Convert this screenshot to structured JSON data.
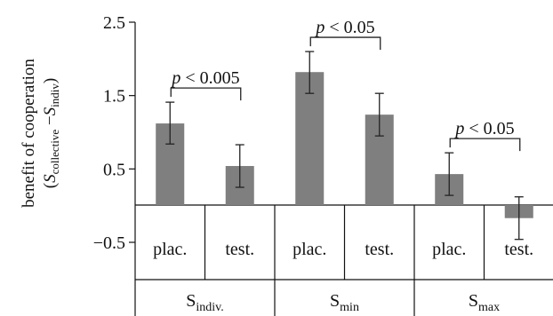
{
  "chart_data": {
    "type": "bar",
    "ylabel_line1": "benefit of cooperation",
    "ylabel_line2": {
      "open": "(",
      "s1": "S",
      "sub1": "collective",
      "minus": " −",
      "s2": "S",
      "sub2": "indiv",
      "close": ")"
    },
    "ylim": [
      -0.5,
      2.5
    ],
    "yticks": [
      2.5,
      1.5,
      0.5,
      -0.5
    ],
    "ytick_labels": [
      "2.5",
      "1.5",
      "0.5",
      "−0.5"
    ],
    "groups": [
      {
        "base": "S",
        "sub": "indiv."
      },
      {
        "base": "S",
        "sub": "min"
      },
      {
        "base": "S",
        "sub": "max"
      }
    ],
    "categories": [
      "plac.",
      "test.",
      "plac.",
      "test.",
      "plac.",
      "test."
    ],
    "values": [
      1.12,
      0.54,
      1.82,
      1.24,
      0.43,
      -0.17
    ],
    "error_low": [
      0.84,
      0.25,
      1.53,
      0.95,
      0.14,
      -0.46
    ],
    "error_high": [
      1.41,
      0.83,
      2.1,
      1.53,
      0.72,
      0.12
    ],
    "bar_color": "#7f7f7f",
    "annotations": [
      {
        "italic": "p",
        "rest": " < 0.005",
        "from_bar": 0,
        "to_bar": 1
      },
      {
        "italic": "p",
        "rest": " < 0.05",
        "from_bar": 2,
        "to_bar": 3
      },
      {
        "italic": "p",
        "rest": " < 0.05",
        "from_bar": 4,
        "to_bar": 5
      }
    ]
  }
}
